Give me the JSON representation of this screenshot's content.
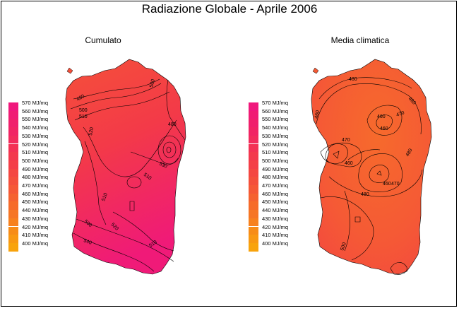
{
  "title": "Radiazione Globale - Aprile 2006",
  "panels": [
    {
      "title": "Cumulato",
      "contour_labels": [
        "480",
        "500",
        "510",
        "520",
        "480",
        "500",
        "510",
        "510",
        "530",
        "500",
        "520",
        "540",
        "510"
      ]
    },
    {
      "title": "Media climatica",
      "contour_labels": [
        "460",
        "480",
        "460",
        "470",
        "460",
        "460",
        "470",
        "480",
        "460",
        "470",
        "460",
        "480",
        "500"
      ]
    }
  ],
  "legend": {
    "unit": "MJ/mq",
    "levels": [
      570,
      560,
      550,
      540,
      530,
      520,
      510,
      500,
      490,
      480,
      470,
      460,
      450,
      440,
      430,
      420,
      410,
      400
    ],
    "colors": {
      "570": "#f0187c",
      "560": "#f01c74",
      "550": "#f0206c",
      "540": "#f12464",
      "530": "#f22b5c",
      "520": "#f33154",
      "510": "#f3384d",
      "500": "#f43f47",
      "490": "#f44741",
      "480": "#f44f3b",
      "470": "#f55836",
      "460": "#f56230",
      "450": "#f66b2a",
      "440": "#f67624",
      "430": "#f7811d",
      "420": "#f78c17",
      "410": "#f89812",
      "400": "#f8a30c"
    }
  }
}
